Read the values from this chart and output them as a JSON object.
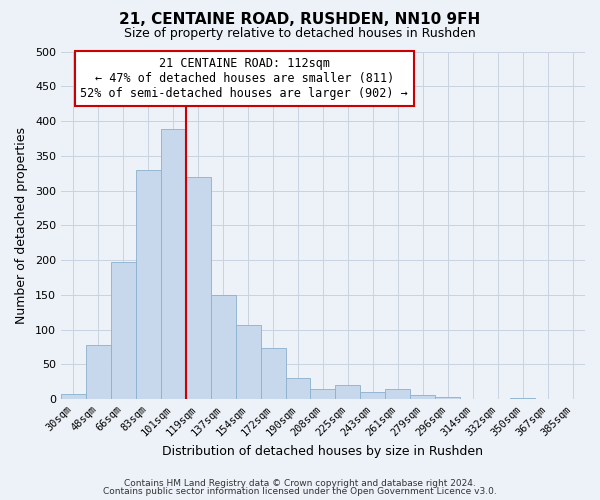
{
  "title": "21, CENTAINE ROAD, RUSHDEN, NN10 9FH",
  "subtitle": "Size of property relative to detached houses in Rushden",
  "xlabel": "Distribution of detached houses by size in Rushden",
  "ylabel": "Number of detached properties",
  "bar_labels": [
    "30sqm",
    "48sqm",
    "66sqm",
    "83sqm",
    "101sqm",
    "119sqm",
    "137sqm",
    "154sqm",
    "172sqm",
    "190sqm",
    "208sqm",
    "225sqm",
    "243sqm",
    "261sqm",
    "279sqm",
    "296sqm",
    "314sqm",
    "332sqm",
    "350sqm",
    "367sqm",
    "385sqm"
  ],
  "bar_values": [
    8,
    78,
    197,
    330,
    388,
    320,
    150,
    107,
    73,
    30,
    15,
    21,
    10,
    14,
    6,
    3,
    0,
    0,
    2,
    0,
    0
  ],
  "bar_color": "#c8d8ec",
  "bar_edgecolor": "#8ab0cc",
  "ylim": [
    0,
    500
  ],
  "yticks": [
    0,
    50,
    100,
    150,
    200,
    250,
    300,
    350,
    400,
    450,
    500
  ],
  "redline_index": 4,
  "annotation_title": "21 CENTAINE ROAD: 112sqm",
  "annotation_line1": "← 47% of detached houses are smaller (811)",
  "annotation_line2": "52% of semi-detached houses are larger (902) →",
  "annotation_box_facecolor": "#ffffff",
  "annotation_box_edgecolor": "#cc0000",
  "redline_color": "#cc0000",
  "grid_color": "#c8d4e0",
  "plot_bg_color": "#edf2f8",
  "fig_bg_color": "#edf2f8",
  "footnote1": "Contains HM Land Registry data © Crown copyright and database right 2024.",
  "footnote2": "Contains public sector information licensed under the Open Government Licence v3.0."
}
